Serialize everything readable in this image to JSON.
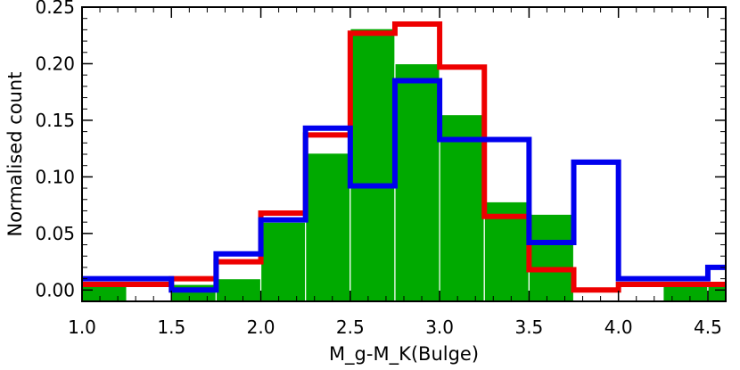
{
  "chart_data": {
    "type": "bar",
    "xlabel": "M_g-M_K(Bulge)",
    "ylabel": "Normalised count",
    "xlim": [
      1.0,
      4.6
    ],
    "ylim": [
      -0.01,
      0.25
    ],
    "xticks": [
      "1.0",
      "1.5",
      "2.0",
      "2.5",
      "3.0",
      "3.5",
      "4.0",
      "4.5"
    ],
    "xtick_values": [
      1.0,
      1.5,
      2.0,
      2.5,
      3.0,
      3.5,
      4.0,
      4.5
    ],
    "yticks": [
      "0.00",
      "0.05",
      "0.10",
      "0.15",
      "0.20",
      "0.25"
    ],
    "ytick_values": [
      0.0,
      0.05,
      0.1,
      0.15,
      0.2,
      0.25
    ],
    "bin_edges": [
      1.0,
      1.25,
      1.5,
      1.75,
      2.0,
      2.25,
      2.5,
      2.75,
      3.0,
      3.25,
      3.5,
      3.75,
      4.0,
      4.25,
      4.5,
      4.75
    ],
    "series": [
      {
        "style": "filled",
        "color": "#00aa00",
        "values": [
          0.005,
          0.0,
          0.005,
          0.01,
          0.06,
          0.121,
          0.231,
          0.2,
          0.155,
          0.078,
          0.067,
          0.0,
          0.0,
          0.005,
          0.005
        ]
      },
      {
        "style": "step",
        "color": "#ee0000",
        "values": [
          0.005,
          0.005,
          0.01,
          0.025,
          0.068,
          0.137,
          0.227,
          0.235,
          0.197,
          0.065,
          0.018,
          0.0,
          0.005,
          0.005,
          0.005
        ]
      },
      {
        "style": "step",
        "color": "#0000ee",
        "values": [
          0.01,
          0.01,
          0.0,
          0.032,
          0.062,
          0.143,
          0.092,
          0.185,
          0.133,
          0.133,
          0.042,
          0.113,
          0.01,
          0.01,
          0.02
        ]
      }
    ]
  }
}
